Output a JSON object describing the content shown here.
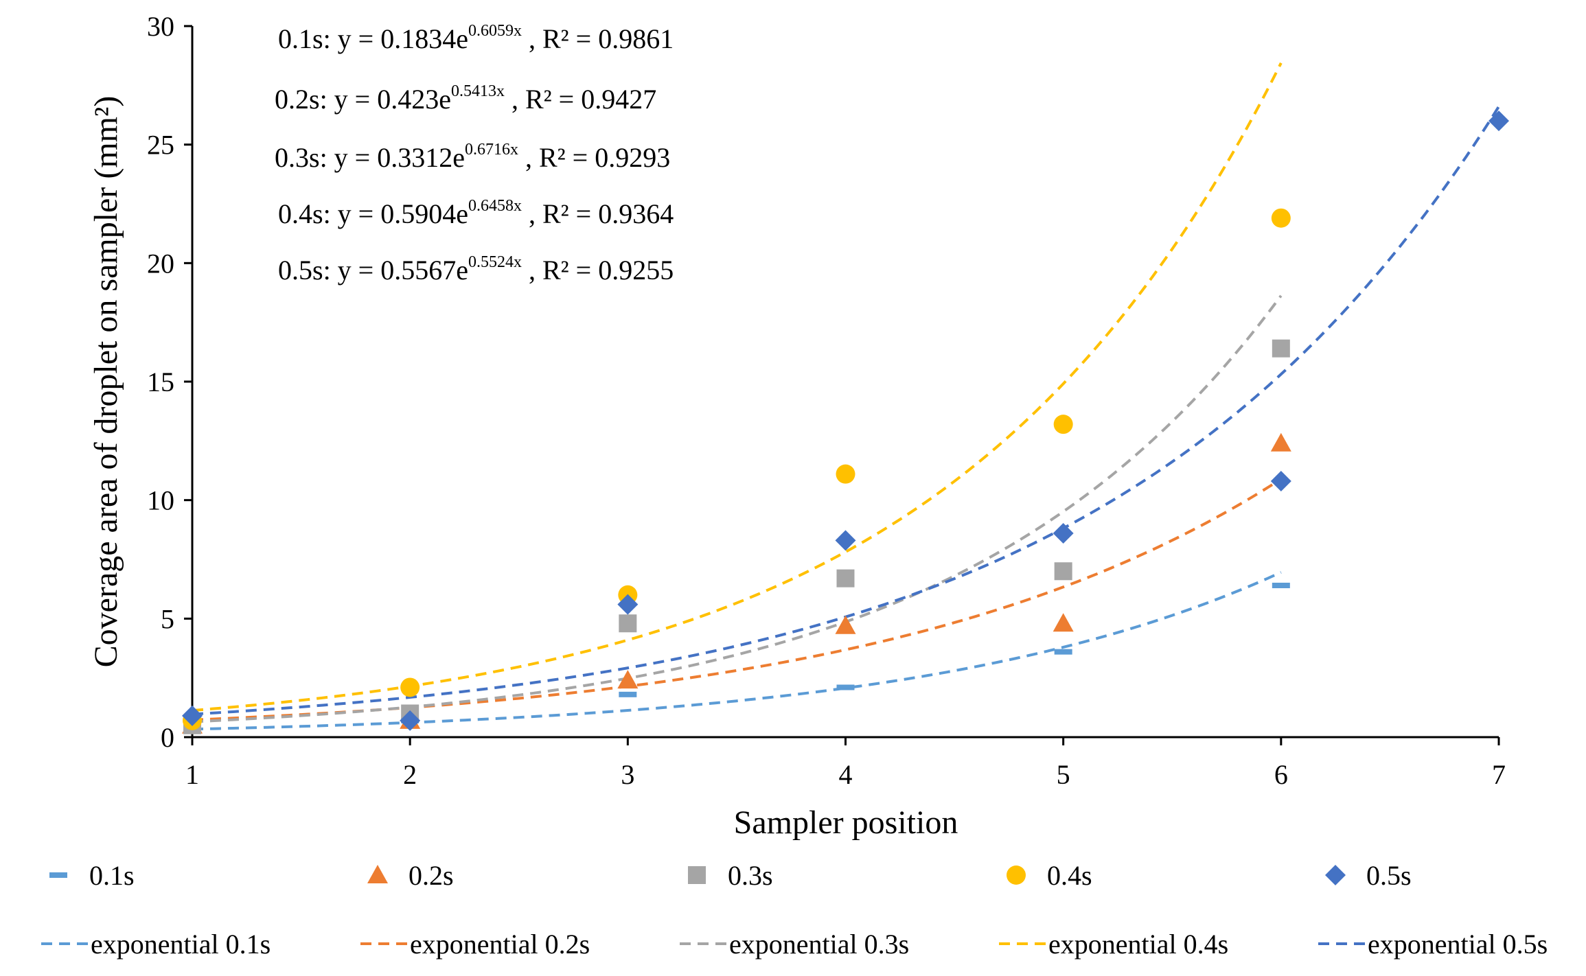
{
  "chart_data": {
    "type": "scatter",
    "title": "",
    "xlabel": "Sampler position",
    "ylabel": "Coverage area of droplet on sampler (mm²)",
    "xlim": [
      1,
      7
    ],
    "ylim": [
      0,
      30
    ],
    "xticks": [
      "1",
      "2",
      "3",
      "4",
      "5",
      "6",
      "7"
    ],
    "yticks": [
      "0",
      "5",
      "10",
      "15",
      "20",
      "25",
      "30"
    ],
    "grid": false,
    "legend_position": "bottom",
    "series": [
      {
        "name": "0.1s",
        "marker": "dash",
        "color": "#5B9BD5",
        "x": [
          1,
          2,
          3,
          4,
          5,
          6
        ],
        "values": [
          0.4,
          0.7,
          1.8,
          2.1,
          3.6,
          6.4
        ]
      },
      {
        "name": "0.2s",
        "marker": "triangle",
        "color": "#ED7D31",
        "x": [
          1,
          2,
          3,
          4,
          5,
          6
        ],
        "values": [
          0.5,
          0.7,
          2.4,
          4.7,
          4.8,
          12.4
        ]
      },
      {
        "name": "0.3s",
        "marker": "square",
        "color": "#A5A5A5",
        "x": [
          1,
          2,
          3,
          4,
          5,
          6
        ],
        "values": [
          0.5,
          1.0,
          4.8,
          6.7,
          7.0,
          16.4
        ]
      },
      {
        "name": "0.4s",
        "marker": "circle",
        "color": "#FFC000",
        "x": [
          1,
          2,
          3,
          4,
          5,
          6
        ],
        "values": [
          0.7,
          2.1,
          6.0,
          11.1,
          13.2,
          21.9
        ]
      },
      {
        "name": "0.5s",
        "marker": "diamond",
        "color": "#4472C4",
        "x": [
          1,
          2,
          3,
          4,
          5,
          6,
          7
        ],
        "values": [
          0.9,
          0.7,
          5.6,
          8.3,
          8.6,
          10.8,
          26.0
        ]
      }
    ],
    "trendlines": [
      {
        "name": "exponential 0.1s",
        "color": "#5B9BD5",
        "a": 0.1834,
        "b": 0.6059,
        "x_range": [
          1,
          6
        ],
        "eq_prefix": "0.1s: y = 0.1834e",
        "eq_exp": "0.6059x",
        "eq_suffix": " , R² = 0.9861"
      },
      {
        "name": "exponential 0.2s",
        "color": "#ED7D31",
        "a": 0.423,
        "b": 0.5413,
        "x_range": [
          1,
          6
        ],
        "eq_prefix": "0.2s: y = 0.423e",
        "eq_exp": "0.5413x",
        "eq_suffix": " , R² = 0.9427"
      },
      {
        "name": "exponential 0.3s",
        "color": "#A5A5A5",
        "a": 0.3312,
        "b": 0.6716,
        "x_range": [
          1,
          6
        ],
        "eq_prefix": "0.3s: y = 0.3312e",
        "eq_exp": "0.6716x",
        "eq_suffix": " , R² = 0.9293"
      },
      {
        "name": "exponential 0.4s",
        "color": "#FFC000",
        "a": 0.5904,
        "b": 0.6458,
        "x_range": [
          1,
          6
        ],
        "eq_prefix": "0.4s: y = 0.5904e",
        "eq_exp": "0.6458x",
        "eq_suffix": " , R² = 0.9364"
      },
      {
        "name": "exponential 0.5s",
        "color": "#4472C4",
        "a": 0.5567,
        "b": 0.5524,
        "x_range": [
          1,
          7
        ],
        "eq_prefix": "0.5s: y = 0.5567e",
        "eq_exp": "0.5524x",
        "eq_suffix": " , R² = 0.9255"
      }
    ]
  }
}
